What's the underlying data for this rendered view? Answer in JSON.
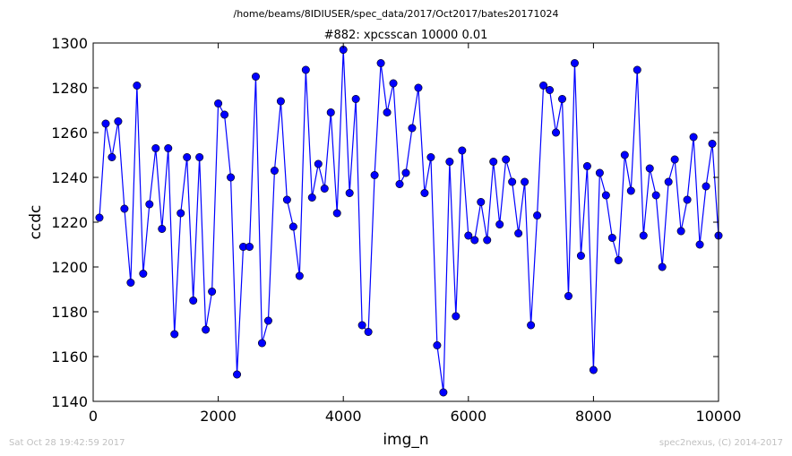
{
  "figure": {
    "suptitle": "/home/beams/8IDIUSER/spec_data/2017/Oct2017/bates20171024",
    "footer_left": "Sat Oct 28 19:42:59 2017",
    "footer_right": "spec2nexus, (C) 2014-2017"
  },
  "colors": {
    "series": "#0000ff",
    "marker_edge": "#000000",
    "axes": "#000000",
    "footer": "#c0c0c0"
  },
  "chart_data": {
    "type": "line",
    "title": "#882: xpcsscan 10000 0.01",
    "xlabel": "img_n",
    "ylabel": "ccdc",
    "xlim": [
      0,
      10000
    ],
    "ylim": [
      1140,
      1300
    ],
    "xticks": [
      0,
      2000,
      4000,
      6000,
      8000,
      10000
    ],
    "yticks": [
      1140,
      1160,
      1180,
      1200,
      1220,
      1240,
      1260,
      1280,
      1300
    ],
    "grid": false,
    "legend": "none",
    "marker": "circle",
    "x": [
      100,
      200,
      300,
      400,
      500,
      600,
      700,
      800,
      900,
      1000,
      1100,
      1200,
      1300,
      1400,
      1500,
      1600,
      1700,
      1800,
      1900,
      2000,
      2100,
      2200,
      2300,
      2400,
      2500,
      2600,
      2700,
      2800,
      2900,
      3000,
      3100,
      3200,
      3300,
      3400,
      3500,
      3600,
      3700,
      3800,
      3900,
      4000,
      4100,
      4200,
      4300,
      4400,
      4500,
      4600,
      4700,
      4800,
      4900,
      5000,
      5100,
      5200,
      5300,
      5400,
      5500,
      5600,
      5700,
      5800,
      5900,
      6000,
      6100,
      6200,
      6300,
      6400,
      6500,
      6600,
      6700,
      6800,
      6900,
      7000,
      7100,
      7200,
      7300,
      7400,
      7500,
      7600,
      7700,
      7800,
      7900,
      8000,
      8100,
      8200,
      8300,
      8400,
      8500,
      8600,
      8700,
      8800,
      8900,
      9000,
      9100,
      9200,
      9300,
      9400,
      9500,
      9600,
      9700,
      9800,
      9900,
      10000
    ],
    "y": [
      1222,
      1264,
      1249,
      1265,
      1226,
      1193,
      1281,
      1197,
      1228,
      1253,
      1217,
      1253,
      1170,
      1224,
      1249,
      1185,
      1249,
      1172,
      1189,
      1273,
      1268,
      1240,
      1152,
      1209,
      1209,
      1285,
      1166,
      1176,
      1243,
      1274,
      1230,
      1218,
      1196,
      1288,
      1231,
      1246,
      1235,
      1269,
      1224,
      1297,
      1233,
      1275,
      1174,
      1171,
      1241,
      1291,
      1269,
      1282,
      1237,
      1242,
      1262,
      1280,
      1233,
      1249,
      1165,
      1144,
      1247,
      1178,
      1252,
      1214,
      1212,
      1229,
      1212,
      1247,
      1219,
      1248,
      1238,
      1215,
      1238,
      1174,
      1223,
      1281,
      1279,
      1260,
      1275,
      1187,
      1291,
      1205,
      1245,
      1154,
      1242,
      1232,
      1213,
      1203,
      1250,
      1234,
      1288,
      1214,
      1244,
      1232,
      1200,
      1238,
      1248,
      1216,
      1230,
      1258,
      1210,
      1236,
      1255,
      1214
    ]
  }
}
